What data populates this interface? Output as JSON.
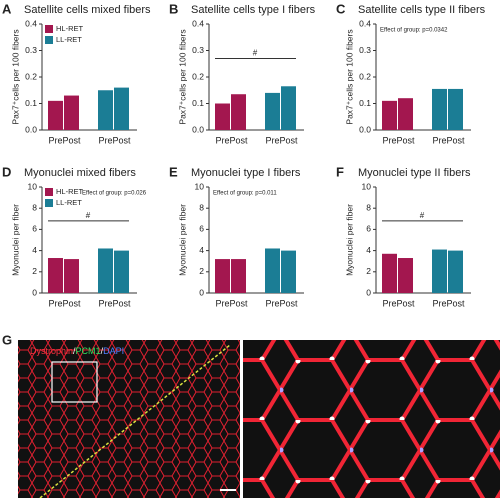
{
  "chart_data": [
    {
      "type": "bar",
      "label": "A",
      "title": "Satellite cells mixed fibers",
      "ylabel": "Pax7⁺cells per 100 fibers",
      "categories": [
        "Pre",
        "Post"
      ],
      "series": [
        {
          "name": "HL-RET",
          "color": "#a3174f",
          "values": [
            0.11,
            0.13
          ]
        },
        {
          "name": "LL-RET",
          "color": "#1b7d95",
          "values": [
            0.15,
            0.16
          ]
        }
      ],
      "ylim": [
        0,
        0.4
      ],
      "yticks": [
        {
          "value": 0,
          "label": "0.0"
        },
        0.1,
        0.2,
        0.3,
        0.4
      ],
      "legend": "top-left"
    },
    {
      "type": "bar",
      "label": "B",
      "title": "Satellite cells type I fibers",
      "ylabel": "Pax7⁺cells per 100 fibers",
      "categories": [
        "Pre",
        "Post"
      ],
      "series": [
        {
          "name": "HL-RET",
          "color": "#a3174f",
          "values": [
            0.1,
            0.135
          ]
        },
        {
          "name": "LL-RET",
          "color": "#1b7d95",
          "values": [
            0.14,
            0.165
          ]
        }
      ],
      "ylim": [
        0,
        0.4
      ],
      "yticks": [
        {
          "value": 0,
          "label": "0.0"
        },
        0.1,
        0.2,
        0.3,
        0.4
      ],
      "annotations": [
        {
          "text": "#",
          "y": 0.27
        }
      ]
    },
    {
      "type": "bar",
      "label": "C",
      "title": "Satellite cells type II fibers",
      "ylabel": "Pax7⁺cells per 100 fibers",
      "categories": [
        "Pre",
        "Post"
      ],
      "series": [
        {
          "name": "HL-RET",
          "color": "#a3174f",
          "values": [
            0.11,
            0.12
          ]
        },
        {
          "name": "LL-RET",
          "color": "#1b7d95",
          "values": [
            0.155,
            0.155
          ]
        }
      ],
      "ylim": [
        0,
        0.4
      ],
      "yticks": [
        {
          "value": 0,
          "label": "0.0"
        },
        0.1,
        0.2,
        0.3,
        0.4
      ],
      "annotations": [
        {
          "text": "Effect of group: p=0.0342"
        }
      ]
    },
    {
      "type": "bar",
      "label": "D",
      "title": "Myonuclei mixed fibers",
      "ylabel": "Myonuclei per fiber",
      "categories": [
        "Pre",
        "Post"
      ],
      "series": [
        {
          "name": "HL-RET",
          "color": "#a3174f",
          "values": [
            3.3,
            3.2
          ]
        },
        {
          "name": "LL-RET",
          "color": "#1b7d95",
          "values": [
            4.2,
            4.0
          ]
        }
      ],
      "ylim": [
        0,
        10
      ],
      "yticks": [
        0,
        2,
        4,
        6,
        8,
        10
      ],
      "legend": "top-left",
      "annotations": [
        {
          "text": "Effect of group: p=0.026"
        },
        {
          "text": "#",
          "y": 6.8
        }
      ]
    },
    {
      "type": "bar",
      "label": "E",
      "title": "Myonuclei type I fibers",
      "ylabel": "Myonuclei per fiber",
      "categories": [
        "Pre",
        "Post"
      ],
      "series": [
        {
          "name": "HL-RET",
          "color": "#a3174f",
          "values": [
            3.2,
            3.2
          ]
        },
        {
          "name": "LL-RET",
          "color": "#1b7d95",
          "values": [
            4.2,
            4.0
          ]
        }
      ],
      "ylim": [
        0,
        10
      ],
      "yticks": [
        0,
        2,
        4,
        6,
        8,
        10
      ],
      "annotations": [
        {
          "text": "Effect of group: p=0.011"
        }
      ]
    },
    {
      "type": "bar",
      "label": "F",
      "title": "Myonuclei type II fibers",
      "ylabel": "Myonuclei per fiber",
      "categories": [
        "Pre",
        "Post"
      ],
      "series": [
        {
          "name": "HL-RET",
          "color": "#a3174f",
          "values": [
            3.7,
            3.3
          ]
        },
        {
          "name": "LL-RET",
          "color": "#1b7d95",
          "values": [
            4.1,
            4.0
          ]
        }
      ],
      "ylim": [
        0,
        10
      ],
      "yticks": [
        0,
        2,
        4,
        6,
        8,
        10
      ],
      "annotations": [
        {
          "text": "#",
          "y": 6.8
        }
      ]
    }
  ],
  "image_panel": {
    "label": "G",
    "stain": [
      {
        "text": "Dystrophin",
        "color": "#ff3040"
      },
      {
        "text": "/",
        "color": "#ffffff"
      },
      {
        "text": "PCM1",
        "color": "#30e060"
      },
      {
        "text": "/",
        "color": "#ffffff"
      },
      {
        "text": "DAPI",
        "color": "#5080ff"
      }
    ]
  }
}
